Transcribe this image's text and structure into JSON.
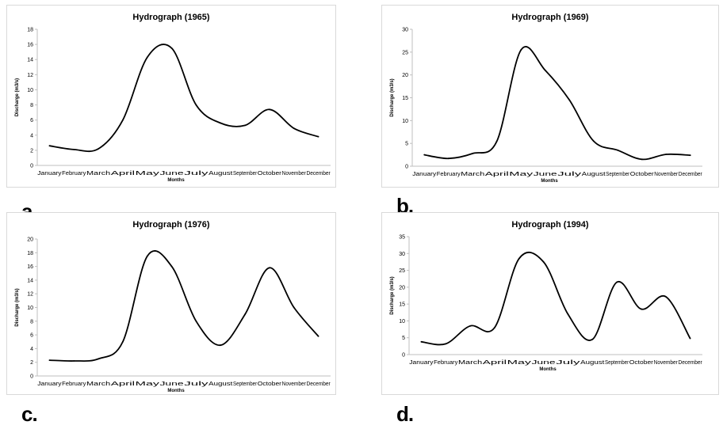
{
  "chart_data": [
    {
      "type": "line",
      "panel_label": "a.",
      "title": "Hydrograph (1965)",
      "xlabel": "Months",
      "ylabel": "Discharge (m3/s)",
      "categories": [
        "January",
        "February",
        "March",
        "April",
        "May",
        "June",
        "July",
        "August",
        "September",
        "October",
        "November",
        "December"
      ],
      "ylim": [
        0,
        18
      ],
      "yticks": [
        0,
        2,
        4,
        6,
        8,
        10,
        12,
        14,
        16,
        18
      ],
      "ytick_labels": [
        "0",
        "2",
        "4",
        "6",
        "8",
        "10",
        "12",
        "14",
        "16",
        "18"
      ],
      "grid": false,
      "series": [
        {
          "values": [
            2.6,
            2.1,
            2.2,
            6.0,
            14.3,
            15.5,
            8.0,
            5.6,
            5.3,
            7.4,
            4.9,
            3.8
          ]
        }
      ]
    },
    {
      "type": "line",
      "panel_label": "b.",
      "title": "Hydrograph (1969)",
      "xlabel": "Months",
      "ylabel": "Discharge (m3/s)",
      "categories": [
        "January",
        "February",
        "March",
        "April",
        "May",
        "June",
        "July",
        "August",
        "September",
        "October",
        "November",
        "December"
      ],
      "ylim": [
        0,
        30
      ],
      "yticks": [
        0,
        5,
        10,
        15,
        20,
        25,
        30
      ],
      "ytick_labels": [
        "0",
        "5",
        "10",
        "15",
        "20",
        "25",
        "30"
      ],
      "grid": false,
      "series": [
        {
          "values": [
            2.5,
            1.7,
            2.8,
            5.5,
            25.5,
            21.0,
            14.5,
            5.5,
            3.5,
            1.5,
            2.6,
            2.4
          ]
        }
      ]
    },
    {
      "type": "line",
      "panel_label": "c.",
      "title": "Hydrograph (1976)",
      "xlabel": "Months",
      "ylabel": "Discharge (m3/s)",
      "categories": [
        "January",
        "February",
        "March",
        "April",
        "May",
        "June",
        "July",
        "August",
        "September",
        "October",
        "November",
        "December"
      ],
      "ylim": [
        0,
        20
      ],
      "yticks": [
        0,
        2,
        4,
        6,
        8,
        10,
        12,
        14,
        16,
        18,
        20
      ],
      "ytick_labels": [
        "0",
        "2",
        "4",
        "6",
        "8",
        "10",
        "12",
        "14",
        "16",
        "18",
        "20"
      ],
      "grid": false,
      "series": [
        {
          "values": [
            2.3,
            2.2,
            2.5,
            5.0,
            17.5,
            16.0,
            8.0,
            4.5,
            9.0,
            15.8,
            10.0,
            5.8
          ]
        }
      ]
    },
    {
      "type": "line",
      "panel_label": "d.",
      "title": "Hydrograph (1994)",
      "xlabel": "Months",
      "ylabel": "Discharge (m3/s)",
      "categories": [
        "January",
        "February",
        "March",
        "April",
        "May",
        "June",
        "July",
        "August",
        "September",
        "October",
        "November",
        "December"
      ],
      "ylim": [
        0,
        35
      ],
      "yticks": [
        0,
        5,
        10,
        15,
        20,
        25,
        30,
        35
      ],
      "ytick_labels": [
        "0",
        "5",
        "10",
        "15",
        "20",
        "25",
        "30",
        "35"
      ],
      "grid": false,
      "series": [
        {
          "values": [
            3.8,
            3.2,
            8.5,
            8.0,
            28.5,
            27.5,
            12.0,
            4.5,
            21.5,
            13.5,
            17.2,
            4.8
          ]
        }
      ]
    }
  ]
}
